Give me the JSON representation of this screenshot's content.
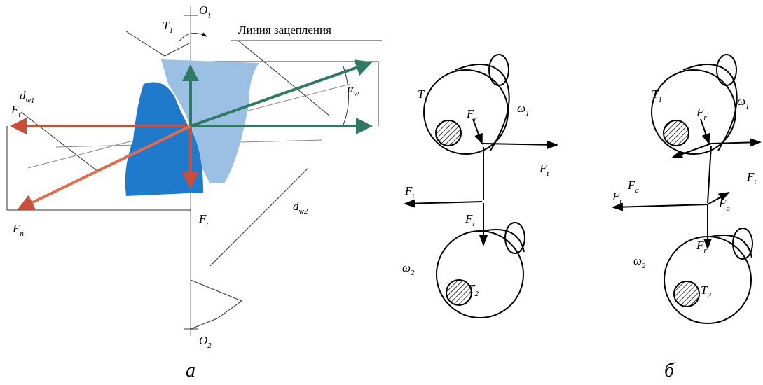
{
  "panel_a": {
    "caption": "а",
    "line_of_action": "Линия зацепления",
    "labels": [
      {
        "base": "O",
        "sub": "1"
      },
      {
        "base": "T",
        "sub": "1"
      },
      {
        "base": "d",
        "sub": "w1"
      },
      {
        "base": "α",
        "sub": "w"
      },
      {
        "base": "F",
        "sub": "t"
      },
      {
        "base": "F",
        "sub": "n"
      },
      {
        "base": "F",
        "sub": "r"
      },
      {
        "base": "d",
        "sub": "w2"
      },
      {
        "base": "O",
        "sub": "2"
      }
    ]
  },
  "panel_b": {
    "labels": [
      {
        "base": "T",
        "sub": "1"
      },
      {
        "base": "ω",
        "sub": "1"
      },
      {
        "base": "F",
        "sub": "r"
      },
      {
        "base": "F",
        "sub": "t"
      },
      {
        "base": "F",
        "sub": "t"
      },
      {
        "base": "F",
        "sub": "r"
      },
      {
        "base": "ω",
        "sub": "2"
      },
      {
        "base": "T",
        "sub": "2"
      }
    ]
  },
  "panel_c": {
    "caption": "б",
    "labels": [
      {
        "base": "T",
        "sub": "1"
      },
      {
        "base": "ω",
        "sub": "1"
      },
      {
        "base": "F",
        "sub": "r"
      },
      {
        "base": "F",
        "sub": "a"
      },
      {
        "base": "F",
        "sub": "t"
      },
      {
        "base": "F",
        "sub": "t"
      },
      {
        "base": "F",
        "sub": "a"
      },
      {
        "base": "F",
        "sub": "r"
      },
      {
        "base": "ω",
        "sub": "2"
      },
      {
        "base": "T",
        "sub": "2"
      }
    ]
  }
}
